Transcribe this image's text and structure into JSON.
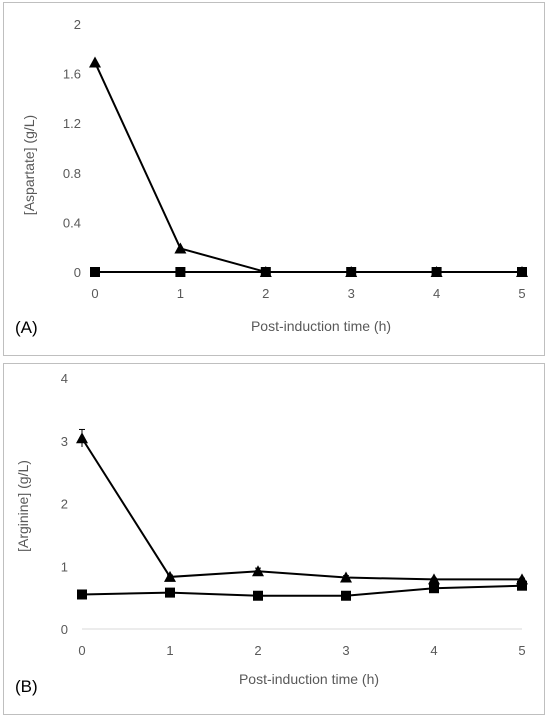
{
  "chart_data": [
    {
      "type": "line",
      "panel_label": "(A)",
      "xlabel": "Post-induction time (h)",
      "ylabel": "[Aspartate] (g/L)",
      "x": [
        0,
        1,
        2,
        3,
        4,
        5
      ],
      "xticks": [
        "0",
        "1",
        "2",
        "3",
        "4",
        "5"
      ],
      "yticks": [
        "0",
        "0.4",
        "0.8",
        "1.2",
        "1.6",
        "2"
      ],
      "ylim": [
        0,
        2
      ],
      "grid": false,
      "series": [
        {
          "marker": "triangle",
          "values": [
            1.69,
            0.19,
            0.0,
            0.0,
            0.0,
            0.0
          ]
        },
        {
          "marker": "square",
          "values": [
            0.0,
            0.0,
            0.0,
            0.0,
            0.0,
            0.0
          ]
        }
      ]
    },
    {
      "type": "line",
      "panel_label": "(B)",
      "xlabel": "Post-induction time (h)",
      "ylabel": "[Arginine] (g/L)",
      "x": [
        0,
        1,
        2,
        3,
        4,
        5
      ],
      "xticks": [
        "0",
        "1",
        "2",
        "3",
        "4",
        "5"
      ],
      "yticks": [
        "0",
        "1",
        "2",
        "3",
        "4"
      ],
      "ylim": [
        0,
        4
      ],
      "grid": false,
      "series": [
        {
          "marker": "triangle",
          "values": [
            3.04,
            0.83,
            0.92,
            0.82,
            0.79,
            0.79
          ],
          "error": [
            0.14,
            0.03,
            0.05,
            0.03,
            0.02,
            0.02
          ]
        },
        {
          "marker": "square",
          "values": [
            0.55,
            0.58,
            0.53,
            0.53,
            0.65,
            0.69
          ],
          "error": [
            0.02,
            0.02,
            0.02,
            0.02,
            0.03,
            0.03
          ]
        }
      ]
    }
  ]
}
